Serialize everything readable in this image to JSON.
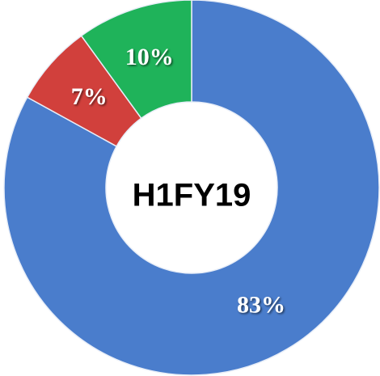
{
  "chart_data": {
    "type": "donut",
    "center_label": "H1FY19",
    "values": [
      83,
      7,
      10
    ],
    "value_labels": [
      "83%",
      "7%",
      "10%"
    ],
    "colors": [
      "#4a7dcc",
      "#d1403c",
      "#1fb35a"
    ]
  }
}
